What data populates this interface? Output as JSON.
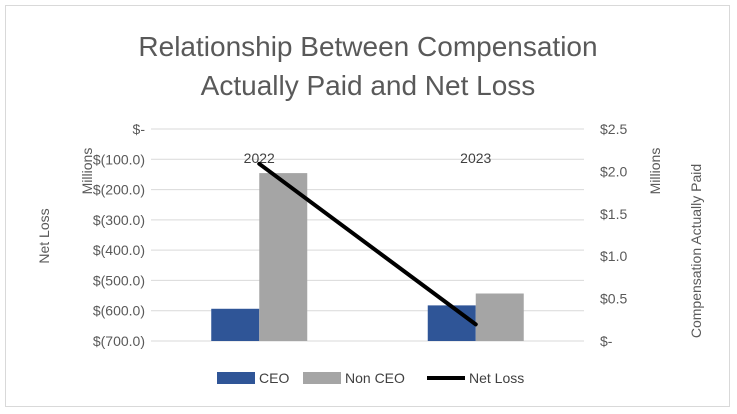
{
  "chart_data": {
    "type": "bar",
    "title_lines": [
      "Relationship Between Compensation",
      "Actually Paid and Net Loss"
    ],
    "categories": [
      "2022",
      "2023"
    ],
    "left_axis": {
      "label": "Net Loss",
      "unit_label": "Millions",
      "range": [
        -700,
        0
      ],
      "ticks": [
        0,
        -100,
        -200,
        -300,
        -400,
        -500,
        -600,
        -700
      ],
      "tick_labels": [
        "$-",
        "$(100.0)",
        "$(200.0)",
        "$(300.0)",
        "$(400.0)",
        "$(500.0)",
        "$(600.0)",
        "$(700.0)"
      ]
    },
    "right_axis": {
      "label": "Compensation Actually  Paid",
      "unit_label": "Millions",
      "range": [
        0,
        2.5
      ],
      "ticks": [
        2.5,
        2.0,
        1.5,
        1.0,
        0.5,
        0
      ],
      "tick_labels": [
        "$2.5",
        "$2.0",
        "$1.5",
        "$1.0",
        "$0.5",
        "$-"
      ]
    },
    "series": [
      {
        "name": "CEO",
        "type": "bar",
        "axis": "right",
        "color": "#2f5597",
        "values": [
          0.38,
          0.42
        ]
      },
      {
        "name": "Non CEO",
        "type": "bar",
        "axis": "right",
        "color": "#a5a5a5",
        "values": [
          1.98,
          0.56
        ]
      },
      {
        "name": "Net Loss",
        "type": "line",
        "axis": "left",
        "color": "#000000",
        "values": [
          -115,
          -645
        ]
      }
    ],
    "grid": true,
    "legend_position": "bottom"
  }
}
